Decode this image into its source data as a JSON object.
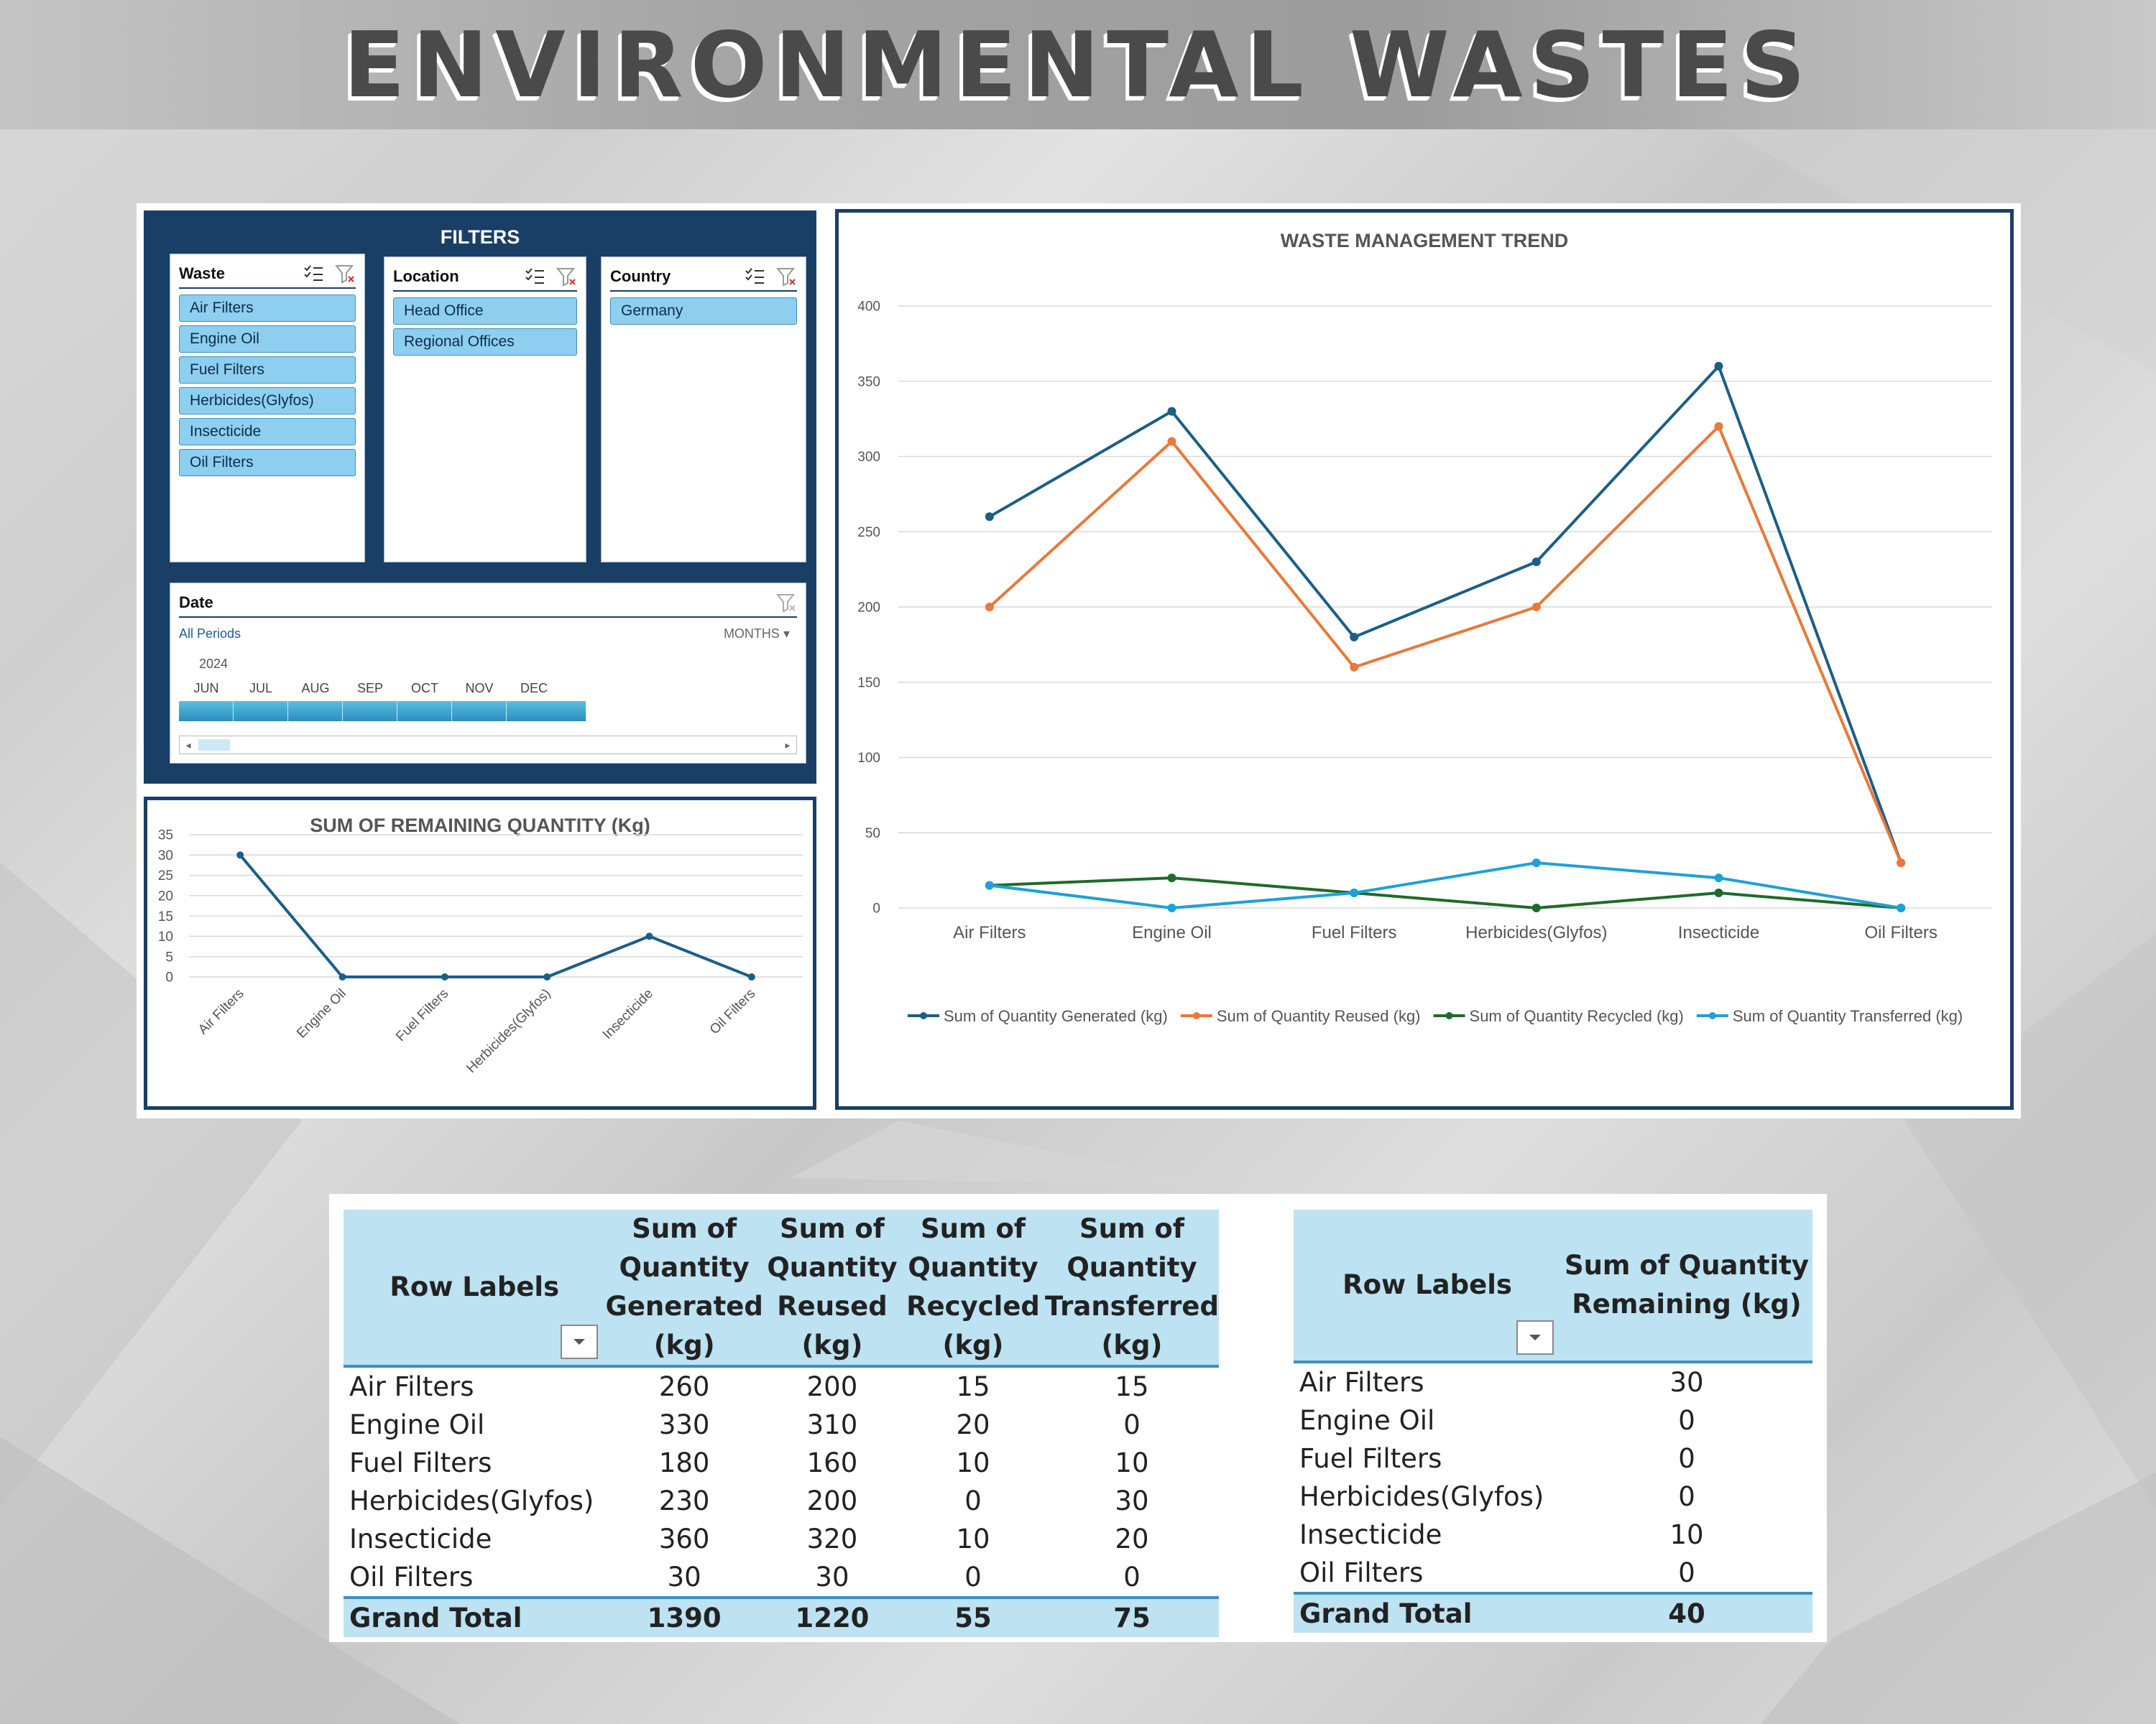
{
  "header": {
    "title": "ENVIRONMENTAL WASTES"
  },
  "filters": {
    "title": "FILTERS",
    "waste": {
      "title": "Waste",
      "items": [
        "Air Filters",
        "Engine Oil",
        "Fuel Filters",
        "Herbicides(Glyfos)",
        "Insecticide",
        "Oil Filters"
      ]
    },
    "location": {
      "title": "Location",
      "items": [
        "Head Office",
        "Regional Offices"
      ]
    },
    "country": {
      "title": "Country",
      "items": [
        "Germany"
      ]
    },
    "date": {
      "title": "Date",
      "periods": "All Periods",
      "level": "MONTHS",
      "year": "2024",
      "months": [
        "JUN",
        "JUL",
        "AUG",
        "SEP",
        "OCT",
        "NOV",
        "DEC"
      ]
    }
  },
  "colors": {
    "navy": "#1a3f66",
    "generated": "#1b5e86",
    "reused": "#e8793a",
    "recycled": "#1e6b2a",
    "transferred": "#1fa0d8",
    "slicer_item": "#8ecfef",
    "table_header": "#bde2f2"
  },
  "chart_data": [
    {
      "type": "line",
      "title": "SUM OF REMAINING QUANTITY (Kg)",
      "categories": [
        "Air Filters",
        "Engine Oil",
        "Fuel Filters",
        "Herbicides(Glyfos)",
        "Insecticide",
        "Oil Filters"
      ],
      "values": [
        30,
        0,
        0,
        0,
        10,
        0
      ],
      "ylim": [
        0,
        35
      ],
      "yticks": [
        0,
        5,
        10,
        15,
        20,
        25,
        30,
        35
      ],
      "grid": true,
      "legend": "none"
    },
    {
      "type": "line",
      "title": "WASTE MANAGEMENT TREND",
      "categories": [
        "Air Filters",
        "Engine Oil",
        "Fuel Filters",
        "Herbicides(Glyfos)",
        "Insecticide",
        "Oil Filters"
      ],
      "series": [
        {
          "name": "Sum of Quantity Generated (kg)",
          "values": [
            260,
            330,
            180,
            230,
            360,
            30
          ]
        },
        {
          "name": "Sum of Quantity Reused (kg)",
          "values": [
            200,
            310,
            160,
            200,
            320,
            30
          ]
        },
        {
          "name": "Sum of Quantity Recycled (kg)",
          "values": [
            15,
            20,
            10,
            0,
            10,
            0
          ]
        },
        {
          "name": "Sum of Quantity Transferred  (kg)",
          "values": [
            15,
            0,
            10,
            30,
            20,
            0
          ]
        }
      ],
      "ylim": [
        0,
        400
      ],
      "yticks": [
        0,
        50,
        100,
        150,
        200,
        250,
        300,
        350,
        400
      ],
      "grid": true,
      "legend": "bottom"
    }
  ],
  "table1": {
    "headers": [
      "Row Labels",
      "Sum of Quantity Generated (kg)",
      "Sum of Quantity Reused (kg)",
      "Sum of Quantity Recycled (kg)",
      "Sum of Quantity Transferred (kg)"
    ],
    "header_lines": [
      [
        "Row Labels"
      ],
      [
        "Sum of",
        "Quantity",
        "Generated",
        "(kg)"
      ],
      [
        "Sum of",
        "Quantity",
        "Reused",
        "(kg)"
      ],
      [
        "Sum of",
        "Quantity",
        "Recycled",
        "(kg)"
      ],
      [
        "Sum of",
        "Quantity",
        "Transferred",
        "(kg)"
      ]
    ],
    "rows": [
      [
        "Air Filters",
        "260",
        "200",
        "15",
        "15"
      ],
      [
        "Engine Oil",
        "330",
        "310",
        "20",
        "0"
      ],
      [
        "Fuel Filters",
        "180",
        "160",
        "10",
        "10"
      ],
      [
        "Herbicides(Glyfos)",
        "230",
        "200",
        "0",
        "30"
      ],
      [
        "Insecticide",
        "360",
        "320",
        "10",
        "20"
      ],
      [
        "Oil Filters",
        "30",
        "30",
        "0",
        "0"
      ]
    ],
    "total": [
      "Grand Total",
      "1390",
      "1220",
      "55",
      "75"
    ]
  },
  "table2": {
    "headers": [
      "Row Labels",
      "Sum of Quantity Remaining (kg)"
    ],
    "header_lines": [
      [
        "Row Labels"
      ],
      [
        "Sum of Quantity",
        "Remaining (kg)"
      ]
    ],
    "rows": [
      [
        "Air Filters",
        "30"
      ],
      [
        "Engine Oil",
        "0"
      ],
      [
        "Fuel Filters",
        "0"
      ],
      [
        "Herbicides(Glyfos)",
        "0"
      ],
      [
        "Insecticide",
        "10"
      ],
      [
        "Oil Filters",
        "0"
      ]
    ],
    "total": [
      "Grand Total",
      "40"
    ]
  }
}
